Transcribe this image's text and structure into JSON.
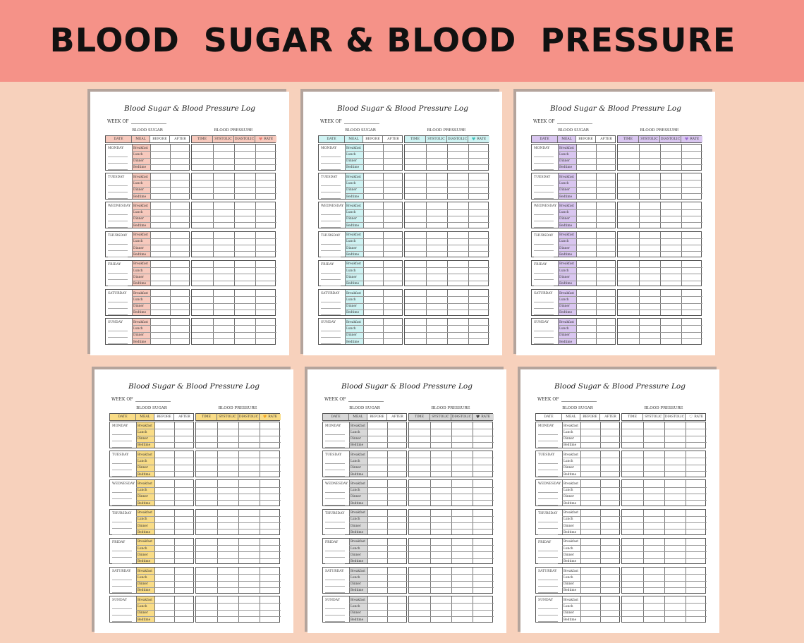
{
  "banner": {
    "title": "BLOOD  SUGAR & BLOOD  PRESSURE"
  },
  "log": {
    "title": "Blood Sugar & Blood Pressure Log",
    "week_of": "WEEK OF",
    "blood_sugar": "BLOOD SUGAR",
    "blood_pressure": "BLOOD PRESSURE",
    "columns": {
      "date": "DATE",
      "meal": "MEAL",
      "before": "BEFORE",
      "after": "AFTER",
      "time": "TIME",
      "systolic": "SYSTOLIC",
      "diastolic": "DIASTOLIC",
      "rate": "RATE"
    },
    "heart_icon": "heart-icon",
    "days": [
      "MONDAY",
      "TUESDAY",
      "WEDNESDAY",
      "THURSDAY",
      "FRIDAY",
      "SATURDAY",
      "SUNDAY"
    ],
    "meals": [
      "Breakfast",
      "Lunch",
      "Dinner",
      "Bedtime"
    ]
  },
  "variants": [
    {
      "name": "pink",
      "accent": "#f7c9bd",
      "heart": "#e57b70",
      "heart_glyph": "♥"
    },
    {
      "name": "aqua",
      "accent": "#cff3f3",
      "heart": "#3ebdb8",
      "heart_glyph": "♥"
    },
    {
      "name": "lavender",
      "accent": "#d9c6f0",
      "heart": "#9b6ed0",
      "heart_glyph": "♥"
    },
    {
      "name": "yellow",
      "accent": "#f9dc86",
      "heart": "#f0a321",
      "heart_glyph": "♥"
    },
    {
      "name": "gray",
      "accent": "#d8d8d8",
      "heart": "#444444",
      "heart_glyph": "♥"
    },
    {
      "name": "white",
      "accent": "#ffffff",
      "heart": "#444444",
      "heart_glyph": "♡"
    }
  ]
}
